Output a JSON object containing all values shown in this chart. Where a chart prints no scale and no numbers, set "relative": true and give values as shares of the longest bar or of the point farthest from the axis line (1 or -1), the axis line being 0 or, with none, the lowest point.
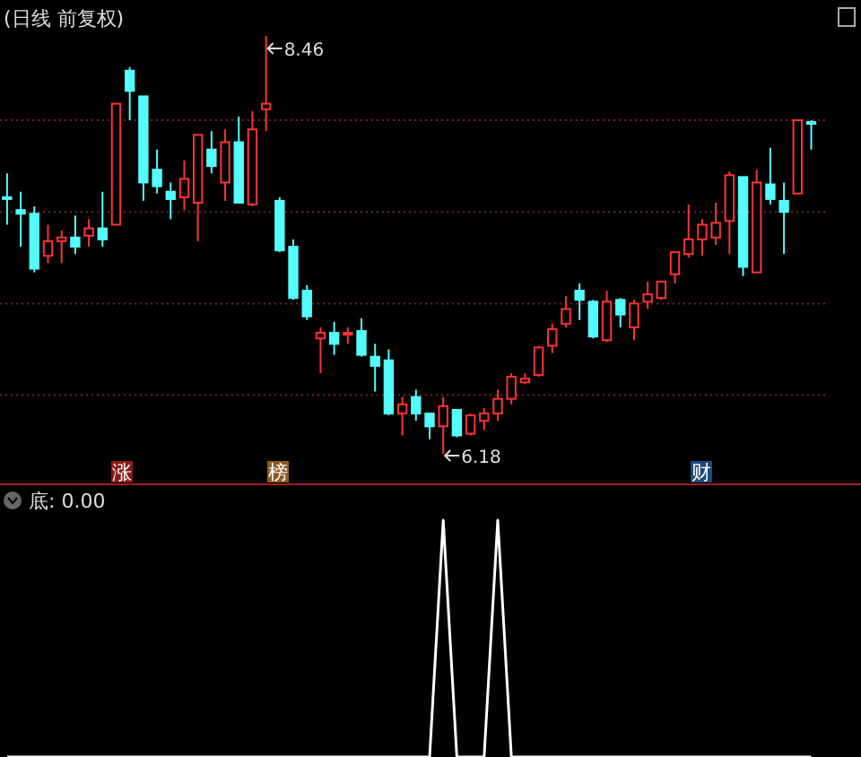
{
  "chart_data": [
    {
      "type": "candlestick",
      "title": "(日线 前复权)",
      "categories": [
        null,
        null,
        null,
        null,
        null,
        null,
        null,
        null,
        null,
        null,
        null,
        null,
        null,
        null,
        null,
        null,
        null,
        null,
        null,
        null,
        null,
        null,
        null,
        null,
        null,
        null,
        null,
        null,
        null,
        null,
        null,
        null,
        null,
        null,
        null,
        null,
        null,
        null,
        null,
        null,
        null,
        null,
        null,
        null,
        null,
        null,
        null,
        null,
        null,
        null,
        null,
        null,
        null,
        null,
        null,
        null,
        null,
        null,
        null,
        null
      ],
      "ohlc": [
        [
          7.58,
          7.71,
          7.43,
          7.57
        ],
        [
          7.51,
          7.61,
          7.31,
          7.49
        ],
        [
          7.49,
          7.53,
          7.17,
          7.19
        ],
        [
          7.26,
          7.43,
          7.22,
          7.34
        ],
        [
          7.34,
          7.4,
          7.22,
          7.36
        ],
        [
          7.36,
          7.48,
          7.27,
          7.31
        ],
        [
          7.37,
          7.46,
          7.31,
          7.41
        ],
        [
          7.41,
          7.61,
          7.31,
          7.35
        ],
        [
          7.43,
          8.09,
          7.43,
          8.09
        ],
        [
          8.27,
          8.29,
          8.0,
          8.16
        ],
        [
          8.13,
          8.13,
          7.56,
          7.66
        ],
        [
          7.73,
          7.84,
          7.6,
          7.64
        ],
        [
          7.61,
          7.66,
          7.46,
          7.57
        ],
        [
          7.58,
          7.78,
          7.51,
          7.68
        ],
        [
          7.55,
          7.92,
          7.34,
          7.92
        ],
        [
          7.84,
          7.94,
          7.71,
          7.75
        ],
        [
          7.66,
          7.95,
          7.56,
          7.88
        ],
        [
          7.88,
          8.02,
          7.55,
          7.55
        ],
        [
          7.54,
          8.05,
          7.53,
          7.95
        ],
        [
          8.06,
          8.46,
          7.94,
          8.09
        ],
        [
          7.56,
          7.58,
          7.28,
          7.29
        ],
        [
          7.31,
          7.35,
          7.02,
          7.03
        ],
        [
          7.07,
          7.1,
          6.91,
          6.93
        ],
        [
          6.81,
          6.87,
          6.62,
          6.84
        ],
        [
          6.84,
          6.9,
          6.72,
          6.78
        ],
        [
          6.83,
          6.87,
          6.78,
          6.84
        ],
        [
          6.85,
          6.92,
          6.71,
          6.72
        ],
        [
          6.71,
          6.78,
          6.52,
          6.66
        ],
        [
          6.69,
          6.75,
          6.39,
          6.4
        ],
        [
          6.4,
          6.49,
          6.28,
          6.45
        ],
        [
          6.49,
          6.53,
          6.36,
          6.4
        ],
        [
          6.4,
          6.4,
          6.26,
          6.33
        ],
        [
          6.33,
          6.49,
          6.18,
          6.44
        ],
        [
          6.42,
          6.42,
          6.27,
          6.28
        ],
        [
          6.29,
          6.4,
          6.28,
          6.39
        ],
        [
          6.36,
          6.43,
          6.31,
          6.4
        ],
        [
          6.4,
          6.53,
          6.36,
          6.48
        ],
        [
          6.48,
          6.62,
          6.45,
          6.6
        ],
        [
          6.57,
          6.62,
          6.56,
          6.59
        ],
        [
          6.61,
          6.77,
          6.6,
          6.76
        ],
        [
          6.77,
          6.89,
          6.73,
          6.86
        ],
        [
          6.89,
          7.04,
          6.87,
          6.97
        ],
        [
          7.07,
          7.11,
          6.91,
          7.02
        ],
        [
          7.01,
          7.02,
          6.81,
          6.82
        ],
        [
          6.8,
          7.07,
          6.79,
          7.01
        ],
        [
          7.02,
          7.03,
          6.87,
          6.94
        ],
        [
          6.87,
          7.02,
          6.8,
          7.0
        ],
        [
          7.01,
          7.12,
          6.97,
          7.05
        ],
        [
          7.03,
          7.12,
          7.02,
          7.12
        ],
        [
          7.16,
          7.28,
          7.11,
          7.28
        ],
        [
          7.27,
          7.54,
          7.25,
          7.35
        ],
        [
          7.35,
          7.46,
          7.26,
          7.43
        ],
        [
          7.36,
          7.55,
          7.32,
          7.44
        ],
        [
          7.45,
          7.72,
          7.27,
          7.7
        ],
        [
          7.69,
          7.69,
          7.15,
          7.2
        ],
        [
          7.17,
          7.73,
          7.17,
          7.66
        ],
        [
          7.65,
          7.85,
          7.54,
          7.57
        ],
        [
          7.56,
          7.66,
          7.27,
          7.5
        ],
        [
          7.6,
          8.0,
          7.6,
          8.0
        ],
        [
          7.99,
          8.0,
          7.84,
          7.98
        ]
      ],
      "colors": [
        "#54fcfc",
        "#54fcfc",
        "#54fcfc",
        "#ff3232",
        "#ff3232",
        "#54fcfc",
        "#ff3232",
        "#54fcfc",
        "#ff3232",
        "#54fcfc",
        "#54fcfc",
        "#54fcfc",
        "#54fcfc",
        "#ff3232",
        "#ff3232",
        "#54fcfc",
        "#ff3232",
        "#54fcfc",
        "#ff3232",
        "#ff3232",
        "#54fcfc",
        "#54fcfc",
        "#54fcfc",
        "#ff3232",
        "#54fcfc",
        "#ff3232",
        "#54fcfc",
        "#54fcfc",
        "#54fcfc",
        "#ff3232",
        "#54fcfc",
        "#54fcfc",
        "#ff3232",
        "#54fcfc",
        "#ff3232",
        "#ff3232",
        "#ff3232",
        "#ff3232",
        "#ff3232",
        "#ff3232",
        "#ff3232",
        "#ff3232",
        "#54fcfc",
        "#54fcfc",
        "#ff3232",
        "#54fcfc",
        "#ff3232",
        "#ff3232",
        "#ff3232",
        "#ff3232",
        "#ff3232",
        "#ff3232",
        "#ff3232",
        "#ff3232",
        "#54fcfc",
        "#ff3232",
        "#54fcfc",
        "#54fcfc",
        "#ff3232",
        "#54fcfc"
      ],
      "yticks": [
        {
          "value": 6.5,
          "label": null
        },
        {
          "value": 7,
          "label": null
        },
        {
          "value": 7.5,
          "label": null
        },
        {
          "value": 8,
          "label": null
        }
      ],
      "grid": "y",
      "annotations": [
        "8.46",
        "6.18",
        "涨",
        "榜",
        "财"
      ]
    },
    {
      "type": "line",
      "title": "底: 0.00",
      "relative": true,
      "color": "#ffffff",
      "categories": [
        null,
        null,
        null,
        null,
        null,
        null,
        null,
        null,
        null,
        null,
        null,
        null,
        null,
        null,
        null,
        null,
        null,
        null,
        null,
        null,
        null,
        null,
        null,
        null,
        null,
        null,
        null,
        null,
        null,
        null,
        null,
        null,
        null,
        null,
        null,
        null,
        null,
        null,
        null,
        null,
        null,
        null,
        null,
        null,
        null,
        null,
        null,
        null,
        null,
        null,
        null,
        null,
        null,
        null,
        null,
        null,
        null,
        null,
        null,
        null
      ],
      "values": [
        0,
        0,
        0,
        0,
        0,
        0,
        0,
        0,
        0,
        0,
        0,
        0,
        0,
        0,
        0,
        0,
        0,
        0,
        0,
        0,
        0,
        0,
        0,
        0,
        0,
        0,
        0,
        0,
        0,
        0,
        0,
        0,
        1,
        0,
        0,
        0,
        1,
        0,
        0,
        0,
        0,
        0,
        0,
        0,
        0,
        0,
        0,
        0,
        0,
        0,
        0,
        0,
        0,
        0,
        0,
        0,
        0,
        0,
        0,
        0
      ]
    }
  ]
}
